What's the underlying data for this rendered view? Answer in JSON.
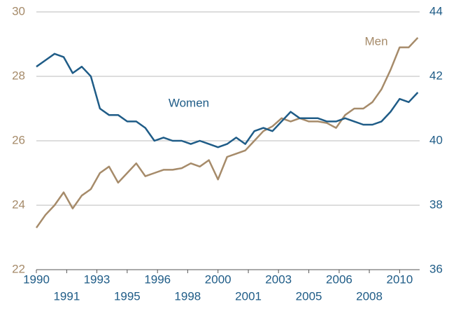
{
  "chart_data": {
    "type": "line",
    "x": [
      1990,
      1990.5,
      1991,
      1991.5,
      1992,
      1992.5,
      1993,
      1993.5,
      1994,
      1994.5,
      1995,
      1995.5,
      1996,
      1996.5,
      1997,
      1997.5,
      1998,
      1998.5,
      1999,
      1999.5,
      2000,
      2000.5,
      2001,
      2001.5,
      2002,
      2002.5,
      2003,
      2003.5,
      2004,
      2004.5,
      2005,
      2005.5,
      2006,
      2006.5,
      2007,
      2007.5,
      2008,
      2008.5,
      2009,
      2009.5,
      2010,
      2010.5,
      2011
    ],
    "series": [
      {
        "name": "Men",
        "color": "#a68b6a",
        "axis": "y",
        "values": [
          23.3,
          23.7,
          24.0,
          24.4,
          23.9,
          24.3,
          24.5,
          25.0,
          25.2,
          24.7,
          25.0,
          25.3,
          24.9,
          25.0,
          25.1,
          25.1,
          25.15,
          25.3,
          25.2,
          25.4,
          24.8,
          25.5,
          25.6,
          25.7,
          26.0,
          26.3,
          26.45,
          26.7,
          26.6,
          26.7,
          26.6,
          26.6,
          26.55,
          26.4,
          26.8,
          27.0,
          27.0,
          27.2,
          27.6,
          28.2,
          28.9,
          28.9,
          29.2
        ]
      },
      {
        "name": "Women",
        "color": "#1f5c87",
        "axis": "y2",
        "values": [
          42.3,
          42.5,
          42.7,
          42.6,
          42.1,
          42.3,
          42.0,
          41.0,
          40.8,
          40.8,
          40.6,
          40.6,
          40.4,
          40.0,
          40.1,
          40.0,
          40.0,
          39.9,
          40.0,
          39.9,
          39.8,
          39.9,
          40.1,
          39.9,
          40.3,
          40.4,
          40.3,
          40.6,
          40.9,
          40.7,
          40.7,
          40.7,
          40.6,
          40.6,
          40.7,
          40.6,
          40.5,
          40.5,
          40.6,
          40.9,
          41.3,
          41.2,
          41.5
        ]
      }
    ],
    "xlim": [
      1990,
      2011.1
    ],
    "xticks": [
      {
        "value": 1990,
        "label": "1990"
      },
      {
        "value": 1991.67,
        "label": "1991"
      },
      {
        "value": 1993.33,
        "label": "1993"
      },
      {
        "value": 1995,
        "label": "1995"
      },
      {
        "value": 1996.67,
        "label": "1996"
      },
      {
        "value": 1998.33,
        "label": "1998"
      },
      {
        "value": 2000,
        "label": "2000"
      },
      {
        "value": 2001.67,
        "label": "2001"
      },
      {
        "value": 2003.33,
        "label": "2003"
      },
      {
        "value": 2005,
        "label": "2005"
      },
      {
        "value": 2006.67,
        "label": "2006"
      },
      {
        "value": 2008.33,
        "label": "2008"
      },
      {
        "value": 2010,
        "label": "2010"
      }
    ],
    "ylim": [
      22,
      30
    ],
    "yticks": [
      22,
      24,
      26,
      28,
      30
    ],
    "y2lim": [
      36,
      44
    ],
    "y2ticks": [
      36,
      38,
      40,
      42,
      44
    ],
    "grid": true,
    "annotations": [
      {
        "text": "Women",
        "series": 1
      },
      {
        "text": "Men",
        "series": 0
      }
    ]
  }
}
